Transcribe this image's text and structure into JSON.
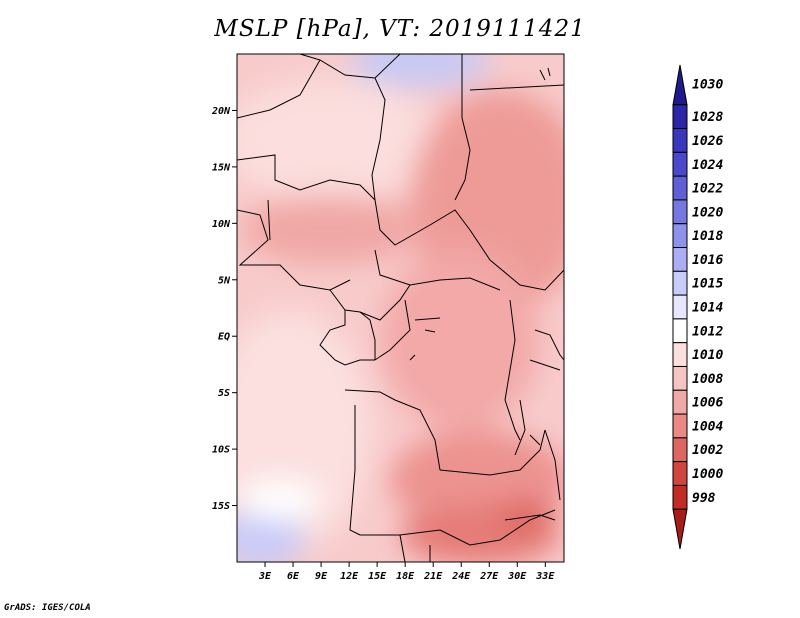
{
  "title": "MSLP [hPa], VT: 2019111421",
  "credit": "GrADS: IGES/COLA",
  "map": {
    "lon_range": [
      0,
      35
    ],
    "lat_range": [
      -20,
      25
    ],
    "lat_labels": [
      "20N",
      "15N",
      "10N",
      "5N",
      "EQ",
      "5S",
      "10S",
      "15S"
    ],
    "lat_values": [
      20,
      15,
      10,
      5,
      0,
      -5,
      -10,
      -15
    ],
    "lon_labels": [
      "3E",
      "6E",
      "9E",
      "12E",
      "15E",
      "18E",
      "21E",
      "24E",
      "27E",
      "30E",
      "33E"
    ],
    "lon_values": [
      3,
      6,
      9,
      12,
      15,
      18,
      21,
      24,
      27,
      30,
      33
    ]
  },
  "colorbar": {
    "labels": [
      "1030",
      "1028",
      "1026",
      "1024",
      "1022",
      "1020",
      "1018",
      "1016",
      "1015",
      "1014",
      "1012",
      "1010",
      "1008",
      "1006",
      "1004",
      "1002",
      "1000",
      "998"
    ],
    "colors": [
      "#1e1a8c",
      "#2a26a6",
      "#3a37be",
      "#4a49cc",
      "#5f60d6",
      "#7678e0",
      "#8f92ea",
      "#abaef2",
      "#c9cbf8",
      "#e6e7fc",
      "#ffffff",
      "#fbe0df",
      "#f6c5c3",
      "#f1a9a6",
      "#e98a86",
      "#de6661",
      "#d1453f",
      "#c02b26",
      "#a81d1a"
    ]
  }
}
